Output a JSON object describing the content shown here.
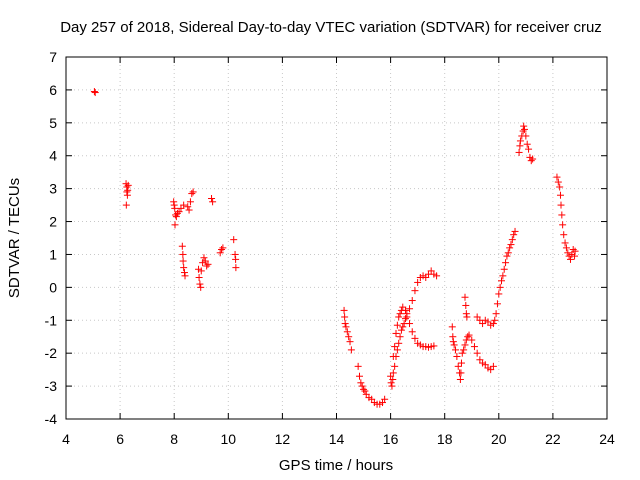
{
  "chart_data": {
    "type": "scatter",
    "title": "Day 257 of 2018, Sidereal Day-to-day VTEC variation (SDTVAR) for receiver cruz",
    "xlabel": "GPS time / hours",
    "ylabel": "SDTVAR / TECUs",
    "xlim": [
      4,
      24
    ],
    "ylim": [
      -4,
      7
    ],
    "xticks": [
      "4",
      "6",
      "8",
      "10",
      "12",
      "14",
      "16",
      "18",
      "20",
      "22",
      "24"
    ],
    "yticks": [
      "-4",
      "-3",
      "-2",
      "-1",
      "0",
      "1",
      "2",
      "3",
      "4",
      "5",
      "6",
      "7"
    ],
    "grid": true,
    "marker": "+",
    "color": "#ff0000",
    "series": [
      {
        "name": "SDTVAR",
        "points": [
          [
            5.05,
            5.95
          ],
          [
            5.08,
            5.92
          ],
          [
            6.22,
            3.15
          ],
          [
            6.25,
            3.05
          ],
          [
            6.25,
            2.9
          ],
          [
            6.27,
            2.8
          ],
          [
            6.23,
            2.5
          ],
          [
            6.28,
            2.95
          ],
          [
            6.3,
            3.1
          ],
          [
            7.98,
            2.6
          ],
          [
            8.0,
            2.5
          ],
          [
            8.02,
            2.4
          ],
          [
            8.05,
            2.2
          ],
          [
            8.08,
            2.15
          ],
          [
            8.03,
            1.9
          ],
          [
            8.12,
            2.25
          ],
          [
            8.18,
            2.3
          ],
          [
            8.25,
            2.4
          ],
          [
            8.35,
            2.5
          ],
          [
            8.5,
            2.45
          ],
          [
            8.55,
            2.35
          ],
          [
            8.6,
            2.6
          ],
          [
            8.65,
            2.85
          ],
          [
            8.7,
            2.9
          ],
          [
            8.3,
            1.25
          ],
          [
            8.32,
            1.0
          ],
          [
            8.33,
            0.8
          ],
          [
            8.35,
            0.6
          ],
          [
            8.38,
            0.45
          ],
          [
            8.4,
            0.35
          ],
          [
            8.9,
            0.55
          ],
          [
            8.92,
            0.3
          ],
          [
            8.95,
            0.1
          ],
          [
            8.98,
            0.0
          ],
          [
            9.0,
            0.5
          ],
          [
            9.05,
            0.75
          ],
          [
            9.1,
            0.9
          ],
          [
            9.15,
            0.8
          ],
          [
            9.2,
            0.65
          ],
          [
            9.25,
            0.7
          ],
          [
            9.38,
            2.7
          ],
          [
            9.42,
            2.6
          ],
          [
            9.7,
            1.05
          ],
          [
            9.75,
            1.15
          ],
          [
            9.8,
            1.2
          ],
          [
            10.2,
            1.45
          ],
          [
            10.25,
            1.0
          ],
          [
            10.27,
            0.85
          ],
          [
            10.28,
            0.6
          ],
          [
            14.28,
            -0.7
          ],
          [
            14.3,
            -0.9
          ],
          [
            14.32,
            -1.1
          ],
          [
            14.35,
            -1.2
          ],
          [
            14.4,
            -1.35
          ],
          [
            14.45,
            -1.5
          ],
          [
            14.5,
            -1.65
          ],
          [
            14.55,
            -1.9
          ],
          [
            14.8,
            -2.4
          ],
          [
            14.85,
            -2.7
          ],
          [
            14.9,
            -2.9
          ],
          [
            14.95,
            -3.0
          ],
          [
            15.0,
            -3.1
          ],
          [
            15.05,
            -3.15
          ],
          [
            15.1,
            -3.25
          ],
          [
            15.2,
            -3.35
          ],
          [
            15.3,
            -3.4
          ],
          [
            15.4,
            -3.5
          ],
          [
            15.5,
            -3.55
          ],
          [
            15.6,
            -3.55
          ],
          [
            15.7,
            -3.5
          ],
          [
            15.78,
            -3.4
          ],
          [
            16.0,
            -2.7
          ],
          [
            16.02,
            -2.9
          ],
          [
            16.05,
            -3.0
          ],
          [
            16.08,
            -2.8
          ],
          [
            16.1,
            -2.6
          ],
          [
            16.15,
            -2.4
          ],
          [
            16.2,
            -2.1
          ],
          [
            16.25,
            -1.9
          ],
          [
            16.3,
            -1.7
          ],
          [
            16.35,
            -1.5
          ],
          [
            16.4,
            -1.3
          ],
          [
            16.45,
            -1.2
          ],
          [
            16.5,
            -1.1
          ],
          [
            16.55,
            -0.95
          ],
          [
            16.6,
            -0.8
          ],
          [
            16.7,
            -0.65
          ],
          [
            16.8,
            -0.4
          ],
          [
            16.9,
            -0.1
          ],
          [
            17.0,
            0.15
          ],
          [
            17.1,
            0.3
          ],
          [
            17.2,
            0.35
          ],
          [
            17.3,
            0.3
          ],
          [
            17.4,
            0.4
          ],
          [
            17.5,
            0.5
          ],
          [
            17.6,
            0.4
          ],
          [
            17.7,
            0.35
          ],
          [
            16.1,
            -2.1
          ],
          [
            16.15,
            -1.8
          ],
          [
            16.2,
            -1.4
          ],
          [
            16.25,
            -1.15
          ],
          [
            16.3,
            -0.9
          ],
          [
            16.35,
            -0.8
          ],
          [
            16.4,
            -0.7
          ],
          [
            16.45,
            -0.6
          ],
          [
            16.55,
            -0.7
          ],
          [
            16.6,
            -0.9
          ],
          [
            16.7,
            -1.1
          ],
          [
            16.8,
            -1.35
          ],
          [
            16.9,
            -1.55
          ],
          [
            17.0,
            -1.7
          ],
          [
            17.1,
            -1.75
          ],
          [
            17.2,
            -1.8
          ],
          [
            17.3,
            -1.8
          ],
          [
            17.4,
            -1.82
          ],
          [
            17.5,
            -1.8
          ],
          [
            17.6,
            -1.78
          ],
          [
            18.28,
            -1.2
          ],
          [
            18.3,
            -1.5
          ],
          [
            18.32,
            -1.65
          ],
          [
            18.35,
            -1.75
          ],
          [
            18.4,
            -1.9
          ],
          [
            18.45,
            -2.1
          ],
          [
            18.5,
            -2.4
          ],
          [
            18.55,
            -2.6
          ],
          [
            18.58,
            -2.8
          ],
          [
            18.6,
            -2.6
          ],
          [
            18.62,
            -2.3
          ],
          [
            18.65,
            -2.0
          ],
          [
            18.7,
            -1.9
          ],
          [
            18.75,
            -1.75
          ],
          [
            18.8,
            -1.6
          ],
          [
            18.85,
            -1.5
          ],
          [
            18.9,
            -1.45
          ],
          [
            19.0,
            -1.6
          ],
          [
            19.1,
            -1.8
          ],
          [
            19.2,
            -2.0
          ],
          [
            19.3,
            -2.2
          ],
          [
            19.4,
            -2.3
          ],
          [
            19.5,
            -2.35
          ],
          [
            19.6,
            -2.45
          ],
          [
            19.7,
            -2.5
          ],
          [
            19.8,
            -2.4
          ],
          [
            18.75,
            -0.3
          ],
          [
            18.78,
            -0.55
          ],
          [
            18.8,
            -0.8
          ],
          [
            18.82,
            -0.9
          ],
          [
            19.2,
            -0.9
          ],
          [
            19.3,
            -1.0
          ],
          [
            19.4,
            -1.1
          ],
          [
            19.5,
            -1.0
          ],
          [
            19.6,
            -1.05
          ],
          [
            19.7,
            -1.15
          ],
          [
            19.8,
            -1.1
          ],
          [
            19.85,
            -1.0
          ],
          [
            19.9,
            -0.8
          ],
          [
            19.95,
            -0.5
          ],
          [
            20.0,
            -0.2
          ],
          [
            20.05,
            0.0
          ],
          [
            20.1,
            0.2
          ],
          [
            20.15,
            0.35
          ],
          [
            20.2,
            0.55
          ],
          [
            20.25,
            0.75
          ],
          [
            20.3,
            0.95
          ],
          [
            20.35,
            1.05
          ],
          [
            20.4,
            1.2
          ],
          [
            20.45,
            1.3
          ],
          [
            20.5,
            1.45
          ],
          [
            20.55,
            1.6
          ],
          [
            20.6,
            1.7
          ],
          [
            20.75,
            4.1
          ],
          [
            20.78,
            4.3
          ],
          [
            20.8,
            4.45
          ],
          [
            20.85,
            4.6
          ],
          [
            20.9,
            4.75
          ],
          [
            20.92,
            4.9
          ],
          [
            20.95,
            4.8
          ],
          [
            21.0,
            4.6
          ],
          [
            21.05,
            4.35
          ],
          [
            21.1,
            4.2
          ],
          [
            21.15,
            3.95
          ],
          [
            21.2,
            3.85
          ],
          [
            21.25,
            3.9
          ],
          [
            22.15,
            3.35
          ],
          [
            22.2,
            3.2
          ],
          [
            22.25,
            3.05
          ],
          [
            22.28,
            2.8
          ],
          [
            22.3,
            2.5
          ],
          [
            22.33,
            2.2
          ],
          [
            22.36,
            1.9
          ],
          [
            22.4,
            1.6
          ],
          [
            22.45,
            1.35
          ],
          [
            22.5,
            1.2
          ],
          [
            22.55,
            1.05
          ],
          [
            22.6,
            0.95
          ],
          [
            22.65,
            0.85
          ],
          [
            22.7,
            1.0
          ],
          [
            22.75,
            1.15
          ],
          [
            22.8,
            0.95
          ],
          [
            22.82,
            1.1
          ]
        ]
      }
    ]
  }
}
